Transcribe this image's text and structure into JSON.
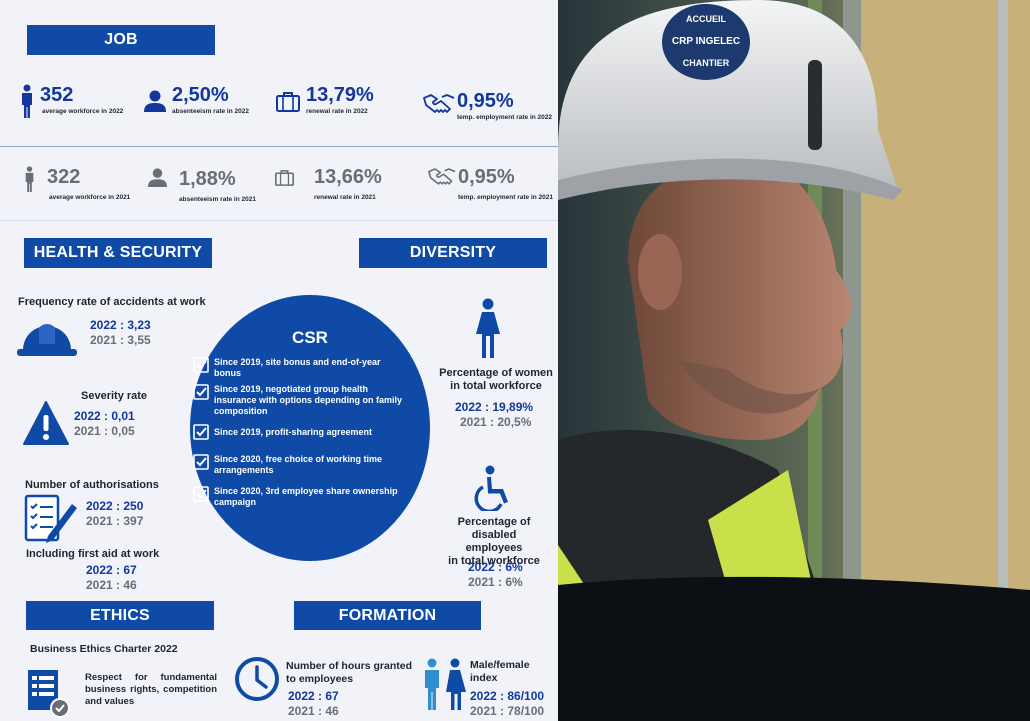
{
  "job": {
    "title": "JOB",
    "current": [
      {
        "value": "352",
        "label": "average workforce in 2022",
        "icon": "person-icon"
      },
      {
        "value": "2,50%",
        "label": "absenteeism rate in 2022",
        "icon": "user-icon"
      },
      {
        "value": "13,79%",
        "label": "renewal rate in 2022",
        "icon": "briefcase-icon"
      },
      {
        "value": "0,95%",
        "label": "temp. employment rate in 2022",
        "icon": "handshake-icon"
      }
    ],
    "previous": [
      {
        "value": "322",
        "label": "average workforce in 2021",
        "icon": "person-icon"
      },
      {
        "value": "1,88%",
        "label": "absenteeism rate in 2021",
        "icon": "user-icon"
      },
      {
        "value": "13,66%",
        "label": "renewal rate in 2021",
        "icon": "briefcase-icon"
      },
      {
        "value": "0,95%",
        "label": "temp. employment rate in 2021",
        "icon": "handshake-icon"
      }
    ]
  },
  "health": {
    "title": "HEALTH & SECURITY",
    "frequency": {
      "label": "Frequency rate of accidents at work",
      "y2022": "2022 : 3,23",
      "y2021": "2021 : 3,55"
    },
    "severity": {
      "label": "Severity rate",
      "y2022": "2022 : 0,01",
      "y2021": "2021 : 0,05"
    },
    "authorisations": {
      "label": "Number of authorisations",
      "y2022": "2022 : 250",
      "y2021": "2021 : 397"
    },
    "first_aid": {
      "label": "Including first aid at work",
      "y2022": "2022 : 67",
      "y2021": "2021 : 46"
    }
  },
  "diversity": {
    "title": "DIVERSITY",
    "women": {
      "label_line1": "Percentage of women",
      "label_line2": "in total workforce",
      "y2022": "2022 : 19,89%",
      "y2021": "2021 : 20,5%"
    },
    "disabled": {
      "label_line1": "Percentage of disabled",
      "label_line2": "employees",
      "label_line3": "in total workforce",
      "y2022": "2022 : 6%",
      "y2021": "2021 : 6%"
    }
  },
  "csr": {
    "title": "CSR",
    "items": [
      "Since 2019, site bonus and end-of-year bonus",
      "Since 2019, negotiated group health insurance with options depending on family composition",
      "Since 2019, profit-sharing agreement",
      "Since 2020, free choice of working time arrangements",
      "Since 2020, 3rd employee share ownership campaign"
    ]
  },
  "ethics": {
    "title": "ETHICS",
    "charter": "Business Ethics Charter 2022",
    "text": "Respect for fundamental business rights, competition and values"
  },
  "formation": {
    "title": "FORMATION",
    "hours": {
      "label_line1": "Number of hours granted",
      "label_line2": "to employees",
      "y2022": "2022 : 67",
      "y2021": "2021 : 46"
    },
    "index": {
      "label_line1": "Male/female",
      "label_line2": "index",
      "y2022": "2022 : 86/100",
      "y2021": "2021 : 78/100"
    }
  },
  "photo": {
    "helmet_text_top": "ACCUEIL",
    "helmet_brand": "CRP INGELEC",
    "helmet_text_bottom": "CHANTIER"
  },
  "colors": {
    "brand_blue": "#0f4aa6",
    "navy": "#11389a",
    "grey": "#6a6d76",
    "hivis": "#c9e04a"
  }
}
